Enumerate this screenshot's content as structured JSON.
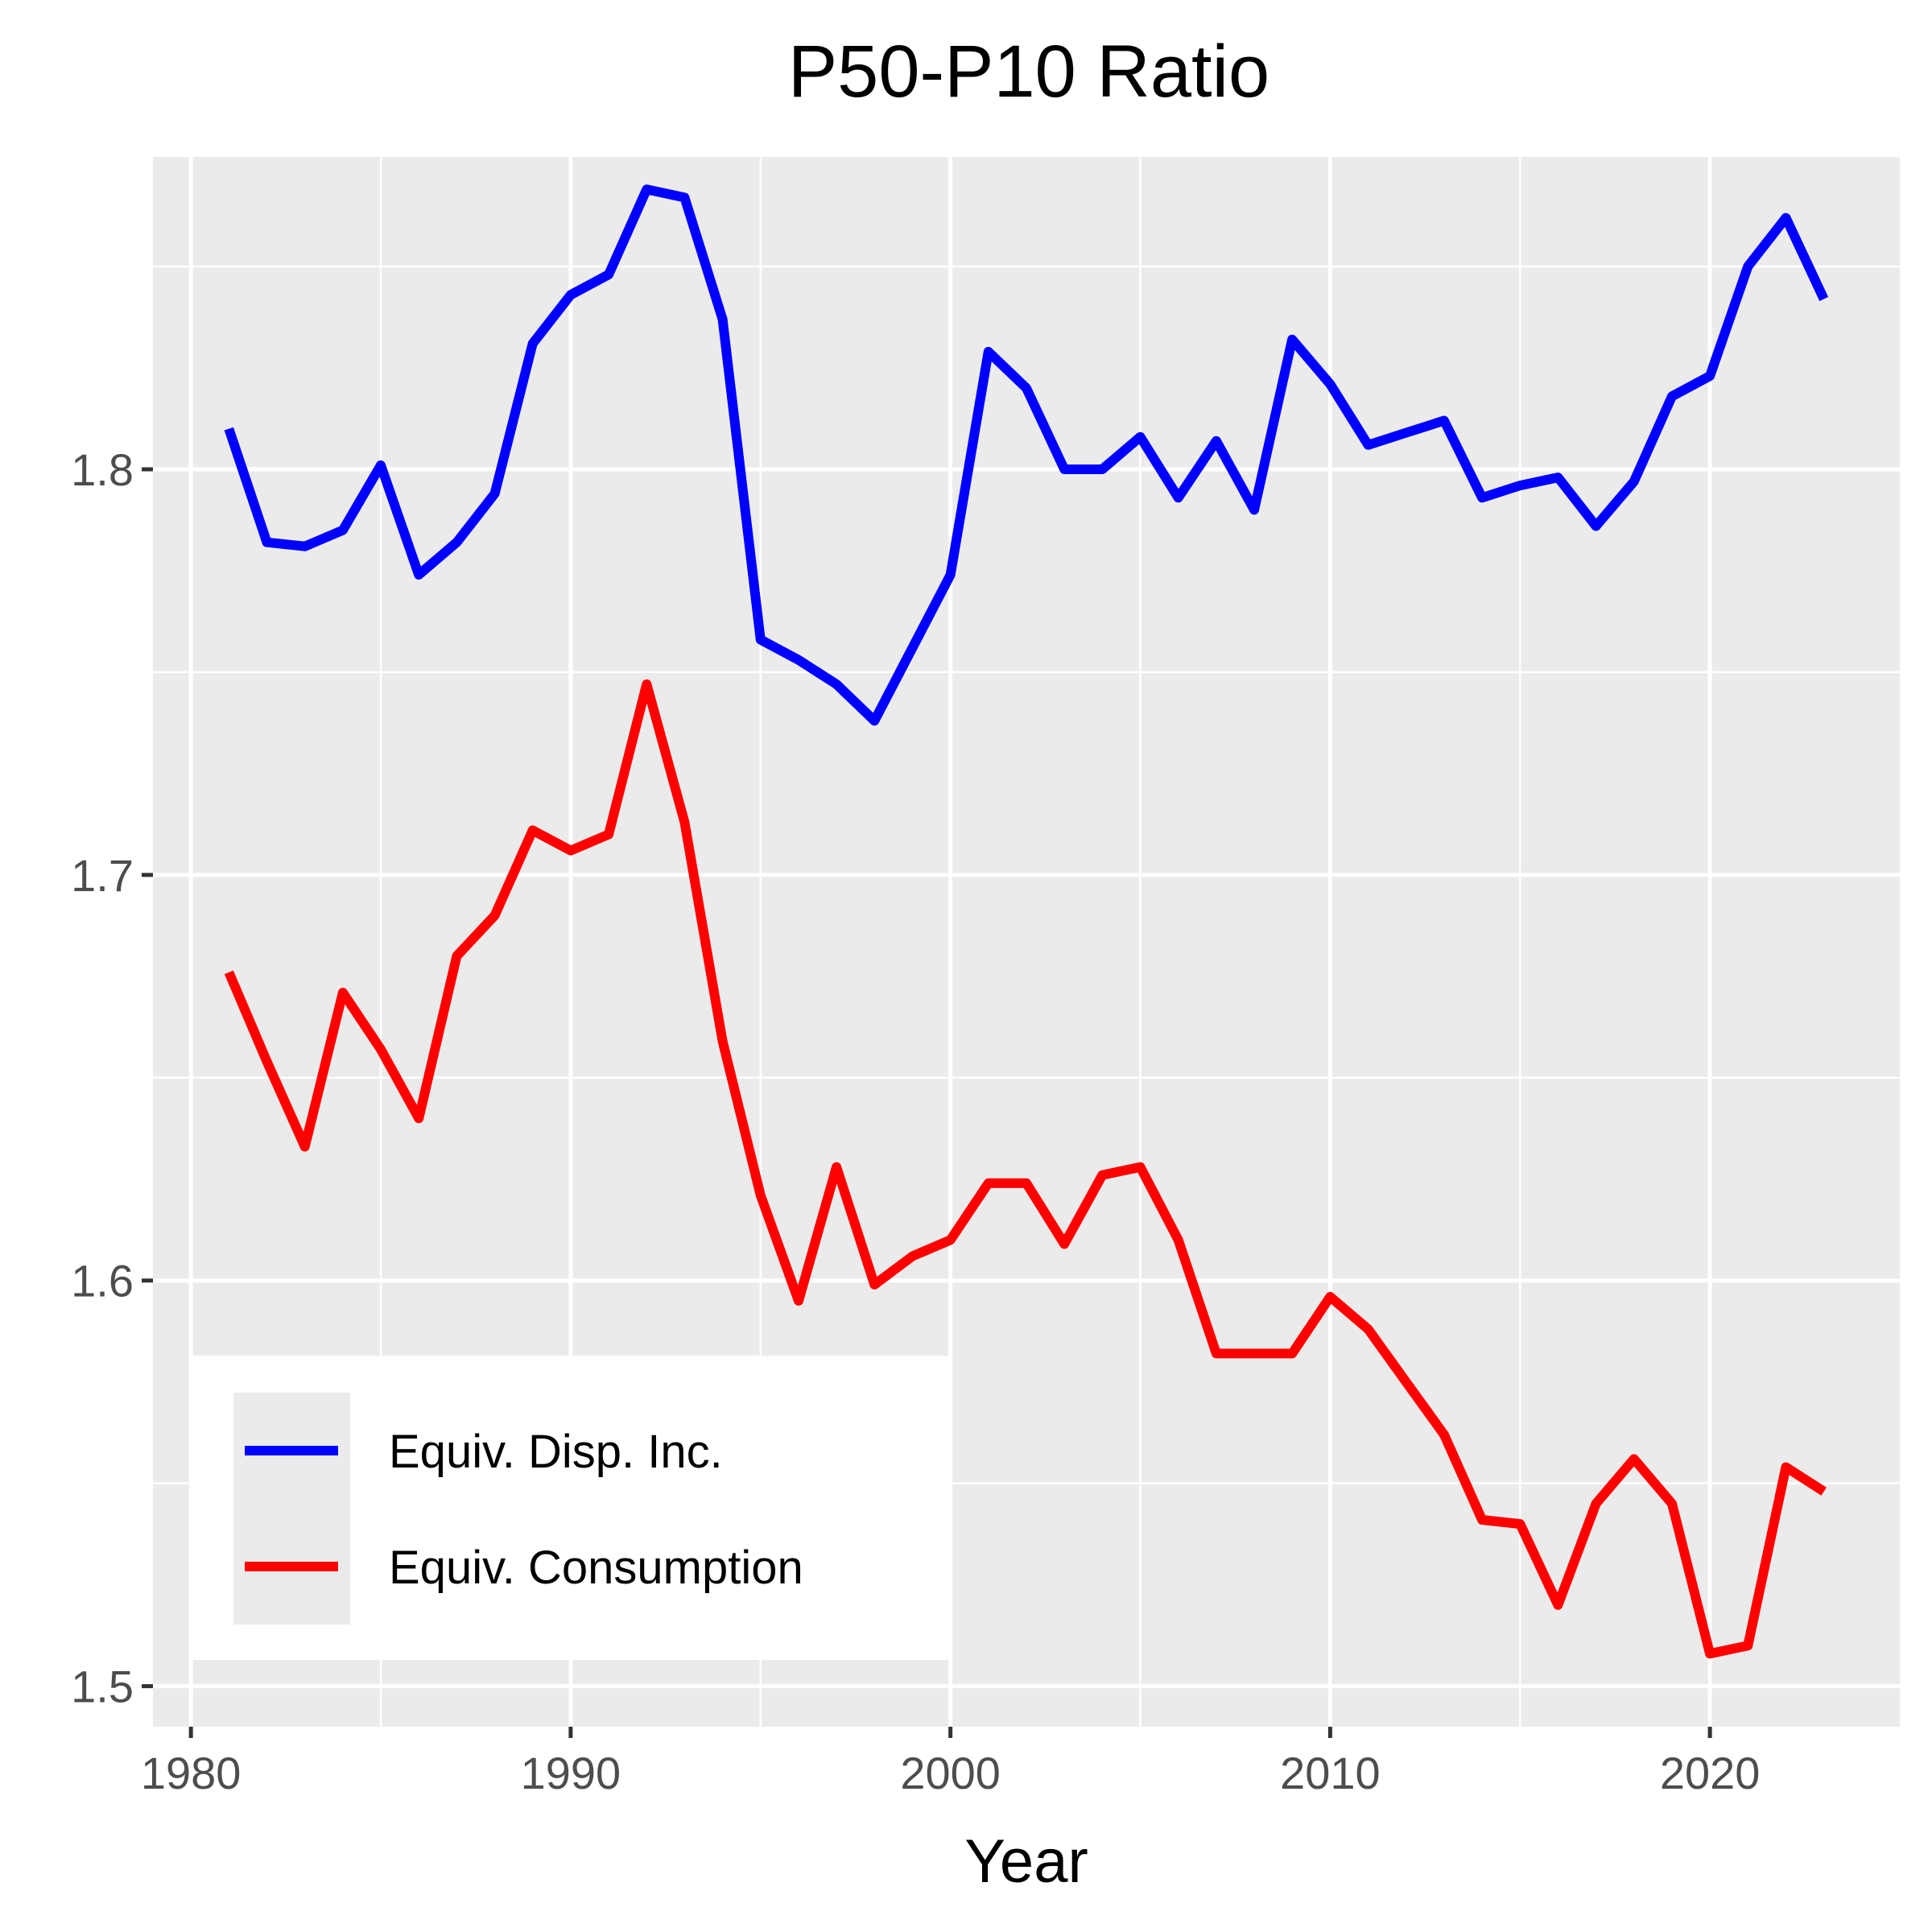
{
  "chart_data": {
    "type": "line",
    "title": "P50-P10 Ratio",
    "xlabel": "Year",
    "ylabel": "",
    "xlim": [
      1979,
      2025
    ],
    "ylim": [
      1.49,
      1.877
    ],
    "x_ticks": [
      1980,
      1990,
      2000,
      2010,
      2020
    ],
    "y_ticks": [
      1.5,
      1.6,
      1.7,
      1.8
    ],
    "y_tick_labels": [
      "1.5",
      "1.6",
      "1.7",
      "1.8"
    ],
    "grid": true,
    "legend_position": "bottom-left",
    "x": [
      1981,
      1982,
      1983,
      1984,
      1985,
      1986,
      1987,
      1988,
      1989,
      1990,
      1991,
      1992,
      1993,
      1994,
      1995,
      1996,
      1997,
      1998,
      1999,
      2000,
      2001,
      2002,
      2003,
      2004,
      2005,
      2006,
      2007,
      2008,
      2009,
      2010,
      2011,
      2012,
      2013,
      2014,
      2015,
      2016,
      2017,
      2018,
      2019,
      2020,
      2021,
      2022,
      2023
    ],
    "series": [
      {
        "name": "Equiv. Disp. Inc.",
        "color": "#0000ff",
        "values": [
          1.81,
          1.782,
          1.781,
          1.785,
          1.801,
          1.774,
          1.782,
          1.794,
          1.831,
          1.843,
          1.848,
          1.869,
          1.867,
          1.837,
          1.758,
          1.753,
          1.747,
          1.738,
          1.756,
          1.774,
          1.829,
          1.82,
          1.8,
          1.8,
          1.808,
          1.793,
          1.807,
          1.79,
          1.832,
          1.821,
          1.806,
          1.809,
          1.812,
          1.793,
          1.796,
          1.798,
          1.786,
          1.797,
          1.818,
          1.823,
          1.85,
          1.862,
          1.842
        ]
      },
      {
        "name": "Equiv. Consumption",
        "color": "#ff0000",
        "values": [
          1.676,
          1.654,
          1.633,
          1.671,
          1.657,
          1.64,
          1.68,
          1.69,
          1.711,
          1.706,
          1.71,
          1.747,
          1.713,
          1.659,
          1.621,
          1.595,
          1.628,
          1.599,
          1.606,
          1.61,
          1.624,
          1.624,
          1.609,
          1.626,
          1.628,
          1.61,
          1.582,
          1.582,
          1.582,
          1.596,
          1.588,
          1.575,
          1.562,
          1.541,
          1.54,
          1.52,
          1.545,
          1.556,
          1.545,
          1.508,
          1.51,
          1.554,
          1.548
        ]
      }
    ]
  }
}
